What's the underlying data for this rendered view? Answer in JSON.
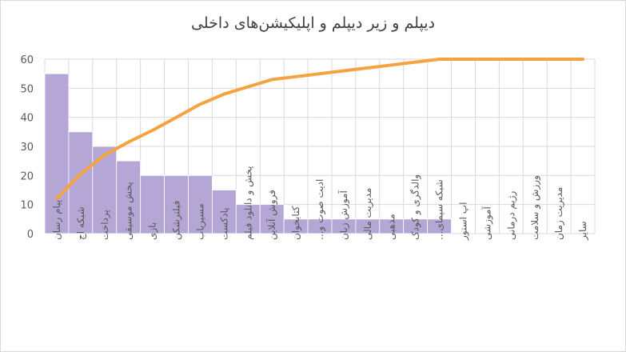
{
  "chart_data": {
    "type": "bar",
    "title": "دیپلم و زیر دیپلم و اپلیکیشن‌های داخلی",
    "xlabel": "",
    "ylabel": "",
    "ylim": [
      0,
      60
    ],
    "yticks": [
      0,
      10,
      20,
      30,
      40,
      50,
      60
    ],
    "grid": true,
    "legend": "none",
    "categories": [
      "پیام رسان",
      "شبکه اج",
      "پرداخت",
      "پخش موسیقی",
      "بازی",
      "فیلترشکن",
      "مسیریاب",
      "پادکست",
      "پخش و دانلود فیلم",
      "فروش آنلاین",
      "کتابخوان",
      "ادیت صوت و...",
      "آموزش زبان",
      "مدیریت مالی",
      "مذهبی",
      "والدگری و کودک",
      "شبکه سیمای...",
      "اپ استور",
      "آموزشی",
      "رژیم درمانی",
      "ورزش و سلامت",
      "مدیریت زمان",
      "سایر"
    ],
    "series": [
      {
        "type": "bar",
        "color": "#b4a7d6",
        "values": [
          55,
          35,
          30,
          25,
          20,
          20,
          20,
          15,
          10,
          10,
          5,
          5,
          5,
          5,
          5,
          5,
          5,
          0,
          0,
          0,
          0,
          0,
          0
        ]
      },
      {
        "type": "line",
        "color": "#f4a340",
        "values": [
          12,
          20.5,
          27,
          31.5,
          35.5,
          40,
          44.5,
          48,
          50.5,
          53,
          54,
          55,
          56,
          57,
          58,
          59,
          60,
          60,
          60,
          60,
          60,
          60,
          60
        ]
      }
    ]
  }
}
